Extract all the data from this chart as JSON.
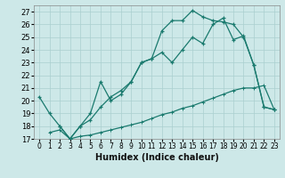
{
  "xlabel": "Humidex (Indice chaleur)",
  "background_color": "#cde8e8",
  "grid_color": "#aacfcf",
  "line_color": "#1a7a6e",
  "xlim": [
    -0.5,
    23.5
  ],
  "ylim": [
    17,
    27.5
  ],
  "yticks": [
    17,
    18,
    19,
    20,
    21,
    22,
    23,
    24,
    25,
    26,
    27
  ],
  "xticks": [
    0,
    1,
    2,
    3,
    4,
    5,
    6,
    7,
    8,
    9,
    10,
    11,
    12,
    13,
    14,
    15,
    16,
    17,
    18,
    19,
    20,
    21,
    22,
    23
  ],
  "line1_x": [
    0,
    1,
    2,
    3,
    4,
    5,
    6,
    7,
    8,
    9,
    10,
    11,
    12,
    13,
    14,
    15,
    16,
    17,
    18,
    19,
    20,
    21,
    22,
    23
  ],
  "line1_y": [
    20.3,
    19.0,
    18.0,
    17.0,
    18.0,
    19.0,
    21.5,
    20.0,
    20.5,
    21.5,
    23.0,
    23.3,
    25.5,
    26.3,
    26.3,
    27.1,
    26.6,
    26.3,
    26.2,
    26.0,
    25.0,
    22.8,
    19.5,
    19.3
  ],
  "line2_x": [
    2,
    3,
    4,
    5,
    6,
    7,
    8,
    9,
    10,
    11,
    12,
    13,
    14,
    15,
    16,
    17,
    18,
    19,
    20,
    21,
    22,
    23
  ],
  "line2_y": [
    18.0,
    17.0,
    18.0,
    18.5,
    19.5,
    20.3,
    20.8,
    21.5,
    23.0,
    23.3,
    23.8,
    23.0,
    24.0,
    25.0,
    24.5,
    26.0,
    26.5,
    24.8,
    25.1,
    22.8,
    19.5,
    19.3
  ],
  "line3_x": [
    1,
    2,
    3,
    4,
    5,
    6,
    7,
    8,
    9,
    10,
    11,
    12,
    13,
    14,
    15,
    16,
    17,
    18,
    19,
    20,
    21,
    22,
    23
  ],
  "line3_y": [
    17.5,
    17.7,
    17.0,
    17.2,
    17.3,
    17.5,
    17.7,
    17.9,
    18.1,
    18.3,
    18.6,
    18.9,
    19.1,
    19.4,
    19.6,
    19.9,
    20.2,
    20.5,
    20.8,
    21.0,
    21.0,
    21.2,
    19.3
  ]
}
